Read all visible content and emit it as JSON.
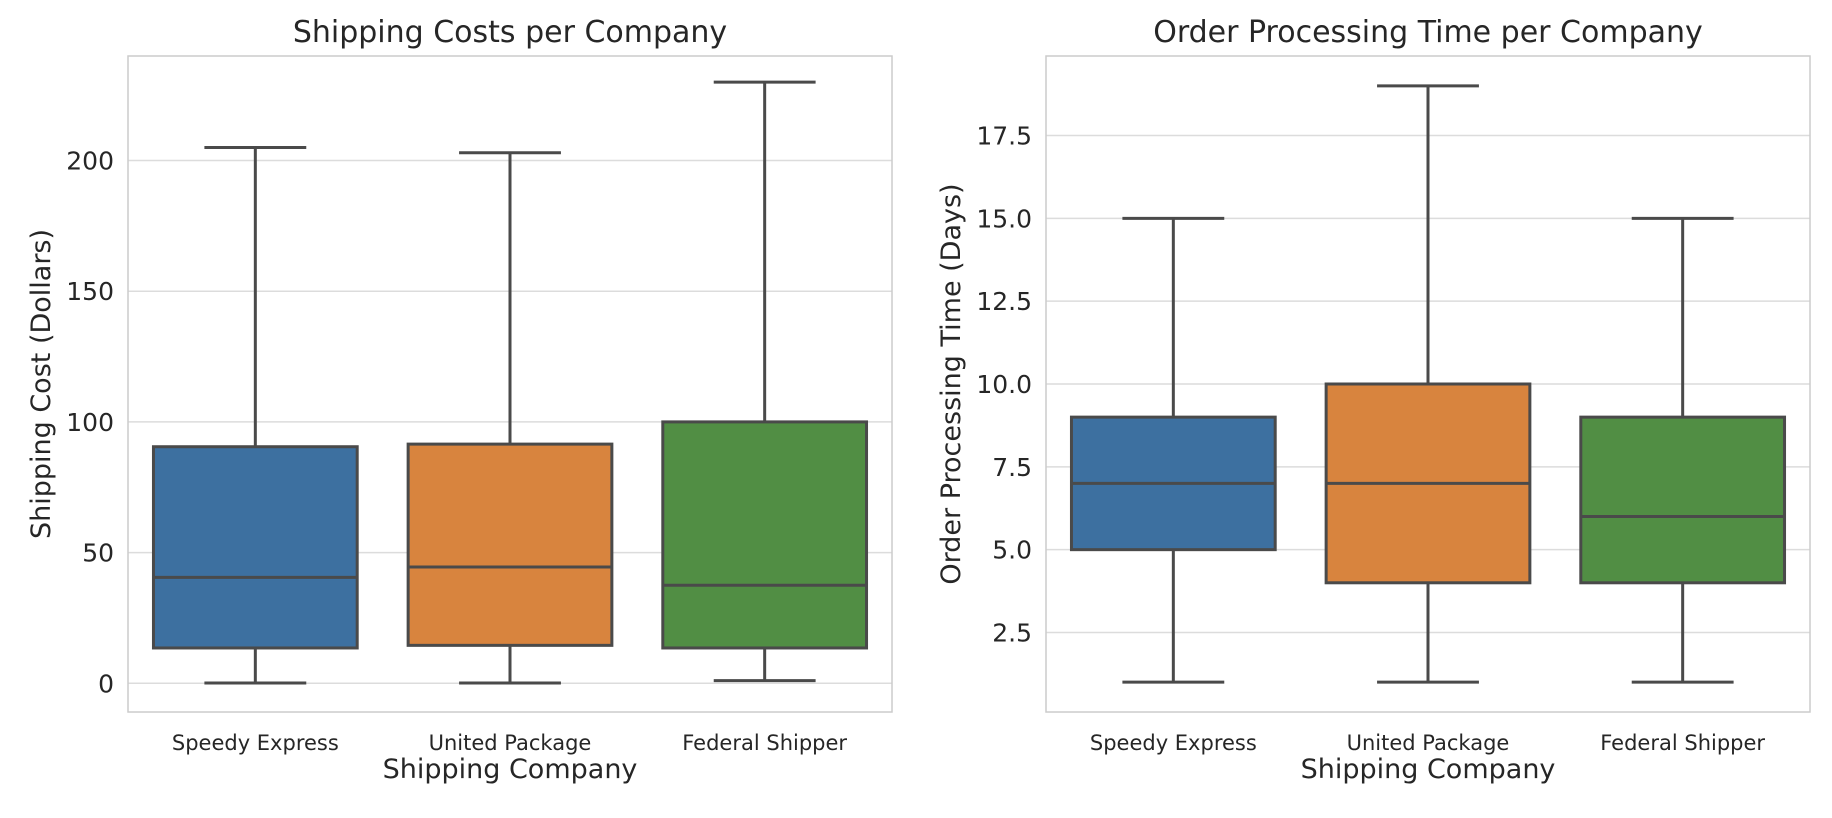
{
  "chart_data": [
    {
      "type": "box",
      "title": "Shipping Costs per Company",
      "xlabel": "Shipping Company",
      "ylabel": "Shipping Cost (Dollars)",
      "categories": [
        "Speedy Express",
        "United Package",
        "Federal Shipper"
      ],
      "ylim": [
        -11,
        240
      ],
      "yticks": [
        0,
        50,
        100,
        150,
        200
      ],
      "ytick_labels": [
        "0",
        "50",
        "100",
        "150",
        "200"
      ],
      "grid": true,
      "boxes": [
        {
          "category": "Speedy Express",
          "color": "#3d70a0",
          "whisker_low": 0.1,
          "q1": 13.5,
          "median": 40.5,
          "q3": 90.5,
          "whisker_high": 205
        },
        {
          "category": "United Package",
          "color": "#d8843e",
          "whisker_low": 0.1,
          "q1": 14.5,
          "median": 44.5,
          "q3": 91.5,
          "whisker_high": 203
        },
        {
          "category": "Federal Shipper",
          "color": "#518e44",
          "whisker_low": 1.0,
          "q1": 13.5,
          "median": 37.5,
          "q3": 100,
          "whisker_high": 230
        }
      ]
    },
    {
      "type": "box",
      "title": "Order Processing Time per Company",
      "xlabel": "Shipping Company",
      "ylabel": "Order Processing Time (Days)",
      "categories": [
        "Speedy Express",
        "United Package",
        "Federal Shipper"
      ],
      "ylim": [
        0.1,
        19.9
      ],
      "yticks": [
        2.5,
        5.0,
        7.5,
        10.0,
        12.5,
        15.0,
        17.5
      ],
      "ytick_labels": [
        "2.5",
        "5.0",
        "7.5",
        "10.0",
        "12.5",
        "15.0",
        "17.5"
      ],
      "grid": true,
      "boxes": [
        {
          "category": "Speedy Express",
          "color": "#3d70a0",
          "whisker_low": 1,
          "q1": 5,
          "median": 7,
          "q3": 9,
          "whisker_high": 15
        },
        {
          "category": "United Package",
          "color": "#d8843e",
          "whisker_low": 1,
          "q1": 4,
          "median": 7,
          "q3": 10,
          "whisker_high": 19
        },
        {
          "category": "Federal Shipper",
          "color": "#518e44",
          "whisker_low": 1,
          "q1": 4,
          "median": 6,
          "q3": 9,
          "whisker_high": 15
        }
      ]
    }
  ]
}
